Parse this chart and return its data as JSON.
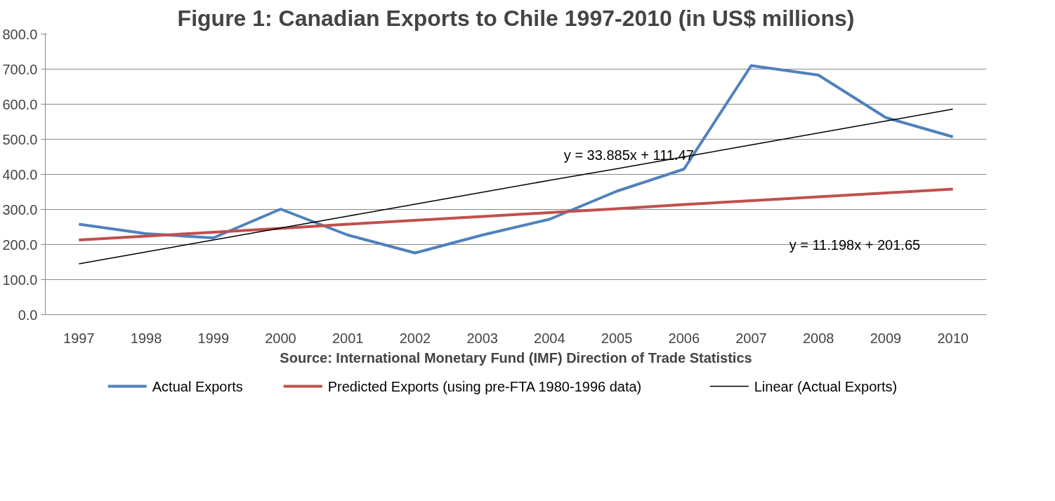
{
  "chart_data": {
    "type": "line",
    "title": "Figure 1: Canadian Exports to Chile 1997-2010 (in US$ millions)",
    "categories": [
      "1997",
      "1998",
      "1999",
      "2000",
      "2001",
      "2002",
      "2003",
      "2004",
      "2005",
      "2006",
      "2007",
      "2008",
      "2009",
      "2010"
    ],
    "series": [
      {
        "name": "Actual Exports",
        "color": "#4f81bd",
        "values": [
          258,
          231,
          219,
          301,
          227,
          176,
          227,
          272,
          352,
          415,
          710,
          683,
          562,
          507
        ]
      },
      {
        "name": "Predicted Exports (using pre-FTA 1980-1996 data)",
        "color": "#c0504d",
        "values": [
          213,
          224,
          235,
          246,
          258,
          269,
          280,
          291,
          302,
          314,
          325,
          336,
          347,
          358
        ]
      },
      {
        "name": "Linear (Actual Exports)",
        "color": "#000000",
        "values": [
          145,
          179,
          213,
          247,
          281,
          315,
          349,
          383,
          416,
          450,
          484,
          518,
          552,
          586
        ]
      }
    ],
    "ylim": [
      0,
      800
    ],
    "yticks": [
      {
        "value": 0,
        "label": "0.0"
      },
      {
        "value": 100,
        "label": "100.0"
      },
      {
        "value": 200,
        "label": "200.0"
      },
      {
        "value": 300,
        "label": "300.0"
      },
      {
        "value": 400,
        "label": "400.0"
      },
      {
        "value": 500,
        "label": "500.0"
      },
      {
        "value": 600,
        "label": "600.0"
      },
      {
        "value": 700,
        "label": "700.0"
      },
      {
        "value": 800,
        "label": "800.0"
      }
    ],
    "grid": "y",
    "legend": "bottom",
    "marker": "none",
    "line_style": "solid",
    "annotations": [
      "y = 33.885x + 111.47",
      "y = 11.198x + 201.65",
      "Source: International Monetary Fund (IMF) Direction of Trade Statistics"
    ]
  }
}
